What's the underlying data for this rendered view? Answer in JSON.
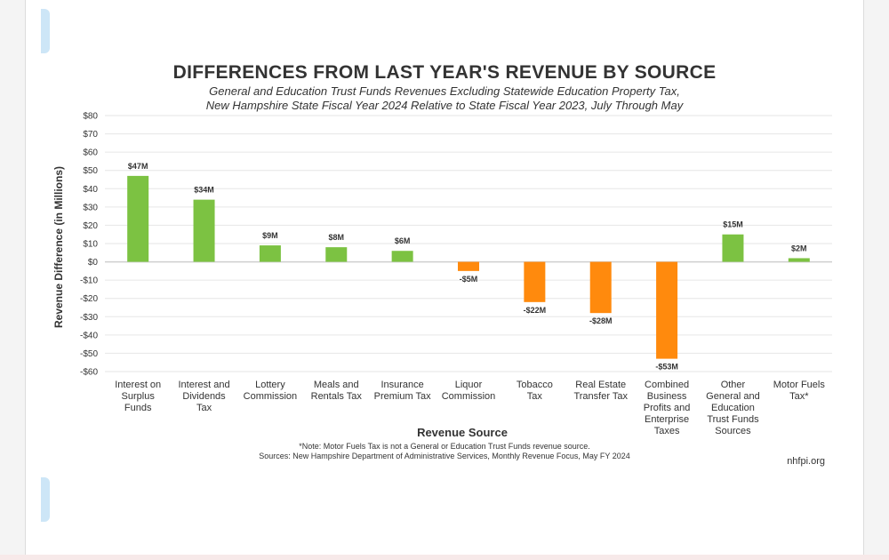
{
  "chart_data": {
    "type": "bar",
    "title": "DIFFERENCES FROM LAST YEAR'S REVENUE BY SOURCE",
    "subtitle_lines": [
      "General and Education Trust Funds Revenues Excluding Statewide Education Property Tax,",
      "New Hampshire State Fiscal Year 2024 Relative to State Fiscal Year 2023, July Through May"
    ],
    "xlabel": "Revenue Source",
    "ylabel": "Revenue Difference (in Millions)",
    "ylim": [
      -60,
      80
    ],
    "yticks": [
      80,
      70,
      60,
      50,
      40,
      30,
      20,
      10,
      0,
      -10,
      -20,
      -30,
      -40,
      -50,
      -60
    ],
    "ytick_labels": [
      "$80",
      "$70",
      "$60",
      "$50",
      "$40",
      "$30",
      "$20",
      "$10",
      "$0",
      "-$10",
      "-$20",
      "-$30",
      "-$40",
      "-$50",
      "-$60"
    ],
    "grid": true,
    "categories": [
      [
        "Interest on",
        "Surplus",
        "Funds"
      ],
      [
        "Interest and",
        "Dividends",
        "Tax"
      ],
      [
        "Lottery",
        "Commission"
      ],
      [
        "Meals and",
        "Rentals Tax"
      ],
      [
        "Insurance",
        "Premium Tax"
      ],
      [
        "Liquor",
        "Commission"
      ],
      [
        "Tobacco",
        "Tax"
      ],
      [
        "Real Estate",
        "Transfer Tax"
      ],
      [
        "Combined",
        "Business",
        "Profits and",
        "Enterprise",
        "Taxes"
      ],
      [
        "Other",
        "General and",
        "Education",
        "Trust Funds",
        "Sources"
      ],
      [
        "Motor Fuels",
        "Tax*"
      ]
    ],
    "values": [
      47,
      34,
      9,
      8,
      6,
      -5,
      -22,
      -28,
      -53,
      15,
      2
    ],
    "data_labels": [
      "$47M",
      "$34M",
      "$9M",
      "$8M",
      "$6M",
      "-$5M",
      "-$22M",
      "-$28M",
      "-$53M",
      "$15M",
      "$2M"
    ],
    "colors": {
      "positive": "#7cc242",
      "negative": "#ff8a0d",
      "grid": "#e6e6e6",
      "zero_line": "#cfcfcf"
    }
  },
  "footnotes": {
    "note": "*Note: Motor Fuels Tax is not a General or Education Trust Funds revenue source.",
    "sources": "Sources: New Hampshire Department of Administrative Services, Monthly Revenue Focus, May FY 2024"
  },
  "brand": "nhfpi.org"
}
